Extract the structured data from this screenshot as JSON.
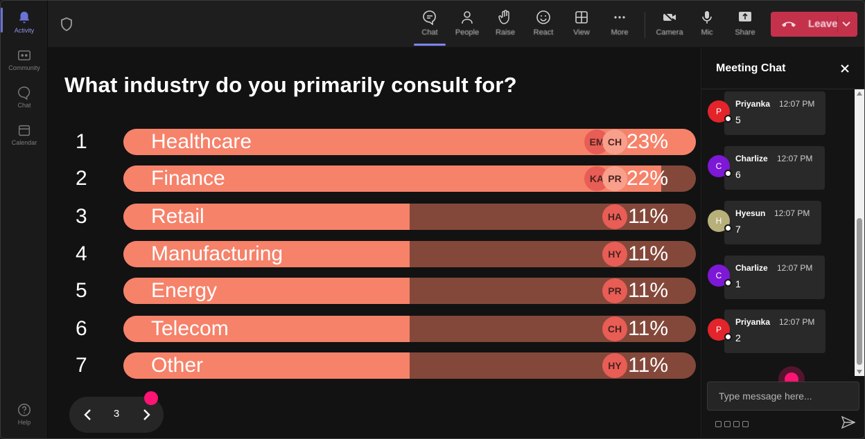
{
  "rail": {
    "items": [
      {
        "label": "Activity",
        "icon": "bell-icon"
      },
      {
        "label": "Community",
        "icon": "community-icon"
      },
      {
        "label": "Chat",
        "icon": "chat-icon"
      },
      {
        "label": "Calendar",
        "icon": "calendar-icon"
      },
      {
        "label": "Help",
        "icon": "help-icon"
      }
    ]
  },
  "toolbar": {
    "chat_label": "Chat",
    "people_label": "People",
    "raise_label": "Raise",
    "react_label": "React",
    "view_label": "View",
    "more_label": "More",
    "camera_label": "Camera",
    "mic_label": "Mic",
    "share_label": "Share",
    "leave_label": "Leave",
    "accent": "#7f85f5",
    "leave_color": "#c4314b"
  },
  "poll": {
    "question": "What industry do you primarily consult for?",
    "bar_color": "#f6826a",
    "track_color": "#84483a",
    "options": [
      {
        "num": "1",
        "label": "Healthcare",
        "percent": "23%",
        "fill": 100,
        "voters": [
          "EM",
          "CH"
        ]
      },
      {
        "num": "2",
        "label": "Finance",
        "percent": "22%",
        "fill": 94,
        "voters": [
          "KA",
          "PR"
        ]
      },
      {
        "num": "3",
        "label": "Retail",
        "percent": "11%",
        "fill": 50,
        "voters": [
          "HA"
        ]
      },
      {
        "num": "4",
        "label": "Manufacturing",
        "percent": "11%",
        "fill": 50,
        "voters": [
          "HY"
        ]
      },
      {
        "num": "5",
        "label": "Energy",
        "percent": "11%",
        "fill": 50,
        "voters": [
          "PR"
        ]
      },
      {
        "num": "6",
        "label": "Telecom",
        "percent": "11%",
        "fill": 50,
        "voters": [
          "CH"
        ]
      },
      {
        "num": "7",
        "label": "Other",
        "percent": "11%",
        "fill": 50,
        "voters": [
          "HY"
        ]
      }
    ],
    "page": "3"
  },
  "chat": {
    "title": "Meeting Chat",
    "placeholder": "Type message here...",
    "messages": [
      {
        "initial": "P",
        "author": "Priyanka",
        "time": "12:07 PM",
        "text": "5",
        "color": "#e3242b"
      },
      {
        "initial": "C",
        "author": "Charlize",
        "time": "12:07 PM",
        "text": "6",
        "color": "#7d18d6"
      },
      {
        "initial": "H",
        "author": "Hyesun",
        "time": "12:07 PM",
        "text": "7",
        "color": "#b7b07a"
      },
      {
        "initial": "C",
        "author": "Charlize",
        "time": "12:07 PM",
        "text": "1",
        "color": "#7d18d6"
      },
      {
        "initial": "P",
        "author": "Priyanka",
        "time": "12:07 PM",
        "text": "2",
        "color": "#e3242b"
      }
    ]
  }
}
